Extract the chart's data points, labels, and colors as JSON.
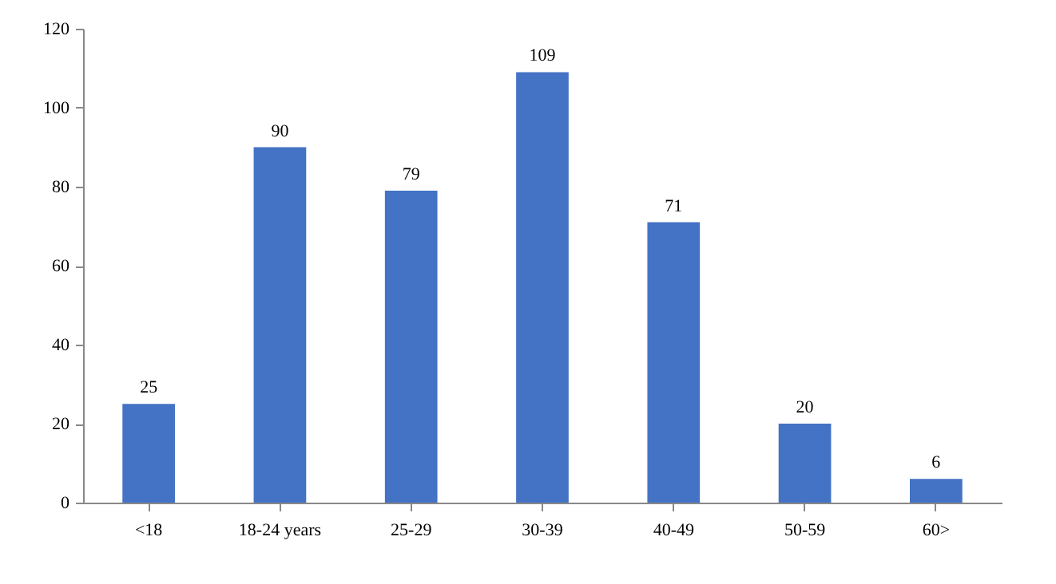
{
  "chart_data": {
    "type": "bar",
    "categories": [
      "<18",
      "18-24 years",
      "25-29",
      "30-39",
      "40-49",
      "50-59",
      "60>"
    ],
    "values": [
      25,
      90,
      79,
      109,
      71,
      20,
      6
    ],
    "color": "#4472c4",
    "ylim": [
      0,
      120
    ],
    "yticks": [
      0,
      20,
      40,
      60,
      80,
      100,
      120
    ],
    "data_labels": true
  }
}
